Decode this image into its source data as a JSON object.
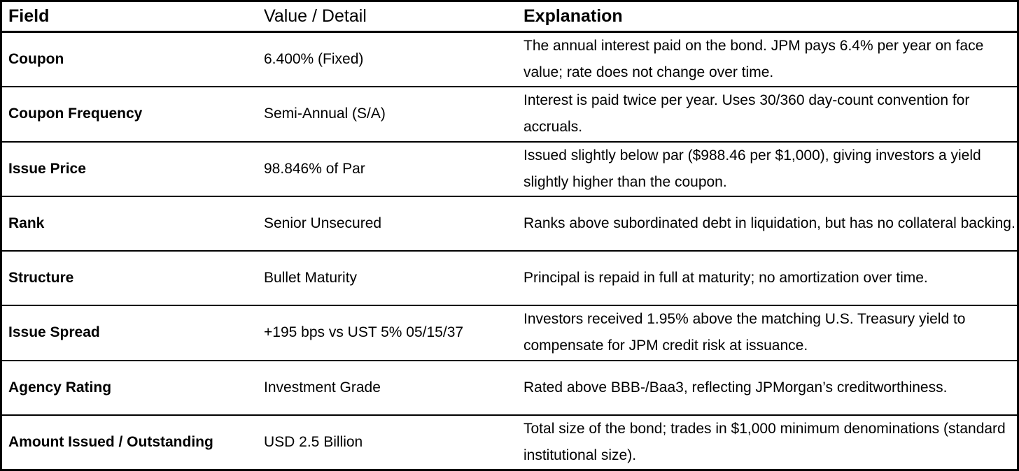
{
  "table": {
    "headers": {
      "field": "Field",
      "value": "Value / Detail",
      "explanation": "Explanation"
    },
    "rows": [
      {
        "field": "Coupon",
        "value": "6.400% (Fixed)",
        "explanation": "The annual interest paid on the bond. JPM pays 6.4% per year on face value; rate does not change over time."
      },
      {
        "field": "Coupon Frequency",
        "value": "Semi-Annual (S/A)",
        "explanation": "Interest is paid twice per year. Uses 30/360 day-count convention for accruals."
      },
      {
        "field": "Issue Price",
        "value": "98.846% of Par",
        "explanation": "Issued slightly below par ($988.46 per $1,000), giving investors a yield slightly higher than the coupon."
      },
      {
        "field": "Rank",
        "value": "Senior Unsecured",
        "explanation": "Ranks above subordinated debt in liquidation, but has no collateral backing."
      },
      {
        "field": "Structure",
        "value": "Bullet Maturity",
        "explanation": "Principal is repaid in full at maturity; no amortization over time."
      },
      {
        "field": "Issue Spread",
        "value": "+195 bps vs UST 5% 05/15/37",
        "explanation": "Investors received 1.95% above the matching U.S. Treasury yield to compensate for JPM credit risk at issuance."
      },
      {
        "field": "Agency Rating",
        "value": "Investment Grade",
        "explanation": "Rated above BBB-/Baa3, reflecting JPMorgan’s creditworthiness."
      },
      {
        "field": "Amount Issued / Outstanding",
        "value": "USD 2.5 Billion",
        "explanation": "Total size of the bond; trades in $1,000 minimum denominations (standard institutional size)."
      }
    ]
  }
}
